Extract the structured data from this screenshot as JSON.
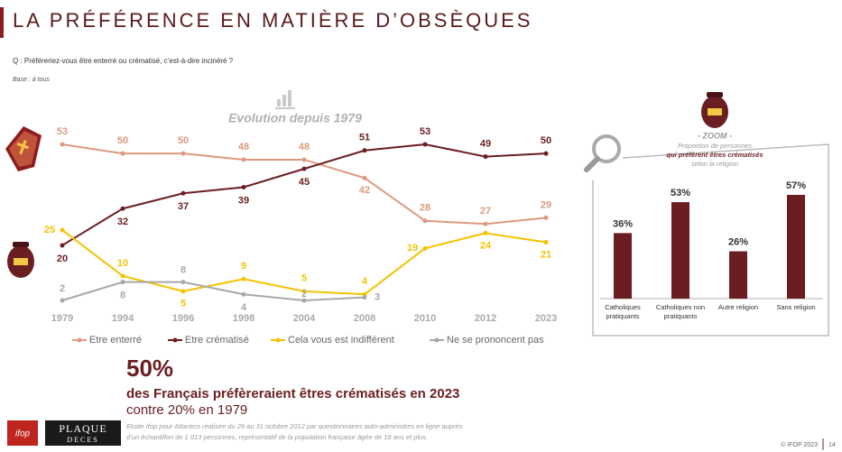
{
  "title": "LA PRÉFÉRENCE EN MATIÈRE D’OBSÈQUES",
  "question": "Q : Préféreriez-vous être enterré ou crématisé, c’est-à-dire incinéré ?",
  "base": "Base : à tous",
  "chart_data": [
    {
      "type": "line",
      "title": "Evolution depuis 1979",
      "categories": [
        "1979",
        "1994",
        "1996",
        "1998",
        "2004",
        "2008",
        "2010",
        "2012",
        "2023"
      ],
      "series": [
        {
          "name": "Etre enterré",
          "color": "#dc9a80",
          "values": [
            53,
            50,
            50,
            48,
            48,
            42,
            28,
            27,
            29
          ]
        },
        {
          "name": "Etre crématisé",
          "color": "#6b1e22",
          "values": [
            20,
            32,
            37,
            39,
            45,
            51,
            53,
            49,
            50
          ]
        },
        {
          "name": "Cela vous est indifférent",
          "color": "#f5c200",
          "values": [
            25,
            10,
            5,
            9,
            5,
            4,
            19,
            24,
            21
          ]
        },
        {
          "name": "Ne se prononcent pas",
          "color": "#a8a8a8",
          "values": [
            2,
            8,
            8,
            4,
            2,
            3,
            null,
            null,
            null
          ]
        }
      ]
    },
    {
      "type": "bar",
      "title": "- ZOOM -",
      "subtitle": [
        "Proportion de personnes",
        "qui préfèrent êtres crématisés",
        "selon la religion"
      ],
      "categories": [
        [
          "Catholiques",
          "pratiquants"
        ],
        [
          "Catholiques non",
          "pratiquants"
        ],
        [
          "Autre religion"
        ],
        [
          "Sans religion"
        ]
      ],
      "values": [
        36,
        53,
        26,
        57
      ],
      "value_labels": [
        "36%",
        "53%",
        "26%",
        "57%"
      ],
      "color": "#6b1e22"
    }
  ],
  "highlight": {
    "value": "50%",
    "line1": "des Français préfèreraient êtres crématisés en 2023",
    "line2": "contre 20% en 1979"
  },
  "note": [
    "Etude Ifop pour Atlantico réalisée du 29 au 31 octobre 2012 par questionnaires auto-administrés en ligne auprès",
    "d’un échantillon de 1 013 personnes, représentatif de la population française âgée de 18 ans et plus."
  ],
  "logos": {
    "ifop": "ifop",
    "plaque": "PLAQUE",
    "deces": "DECES"
  },
  "footer": {
    "copyright": "© IFOP 2023",
    "page": "14"
  }
}
